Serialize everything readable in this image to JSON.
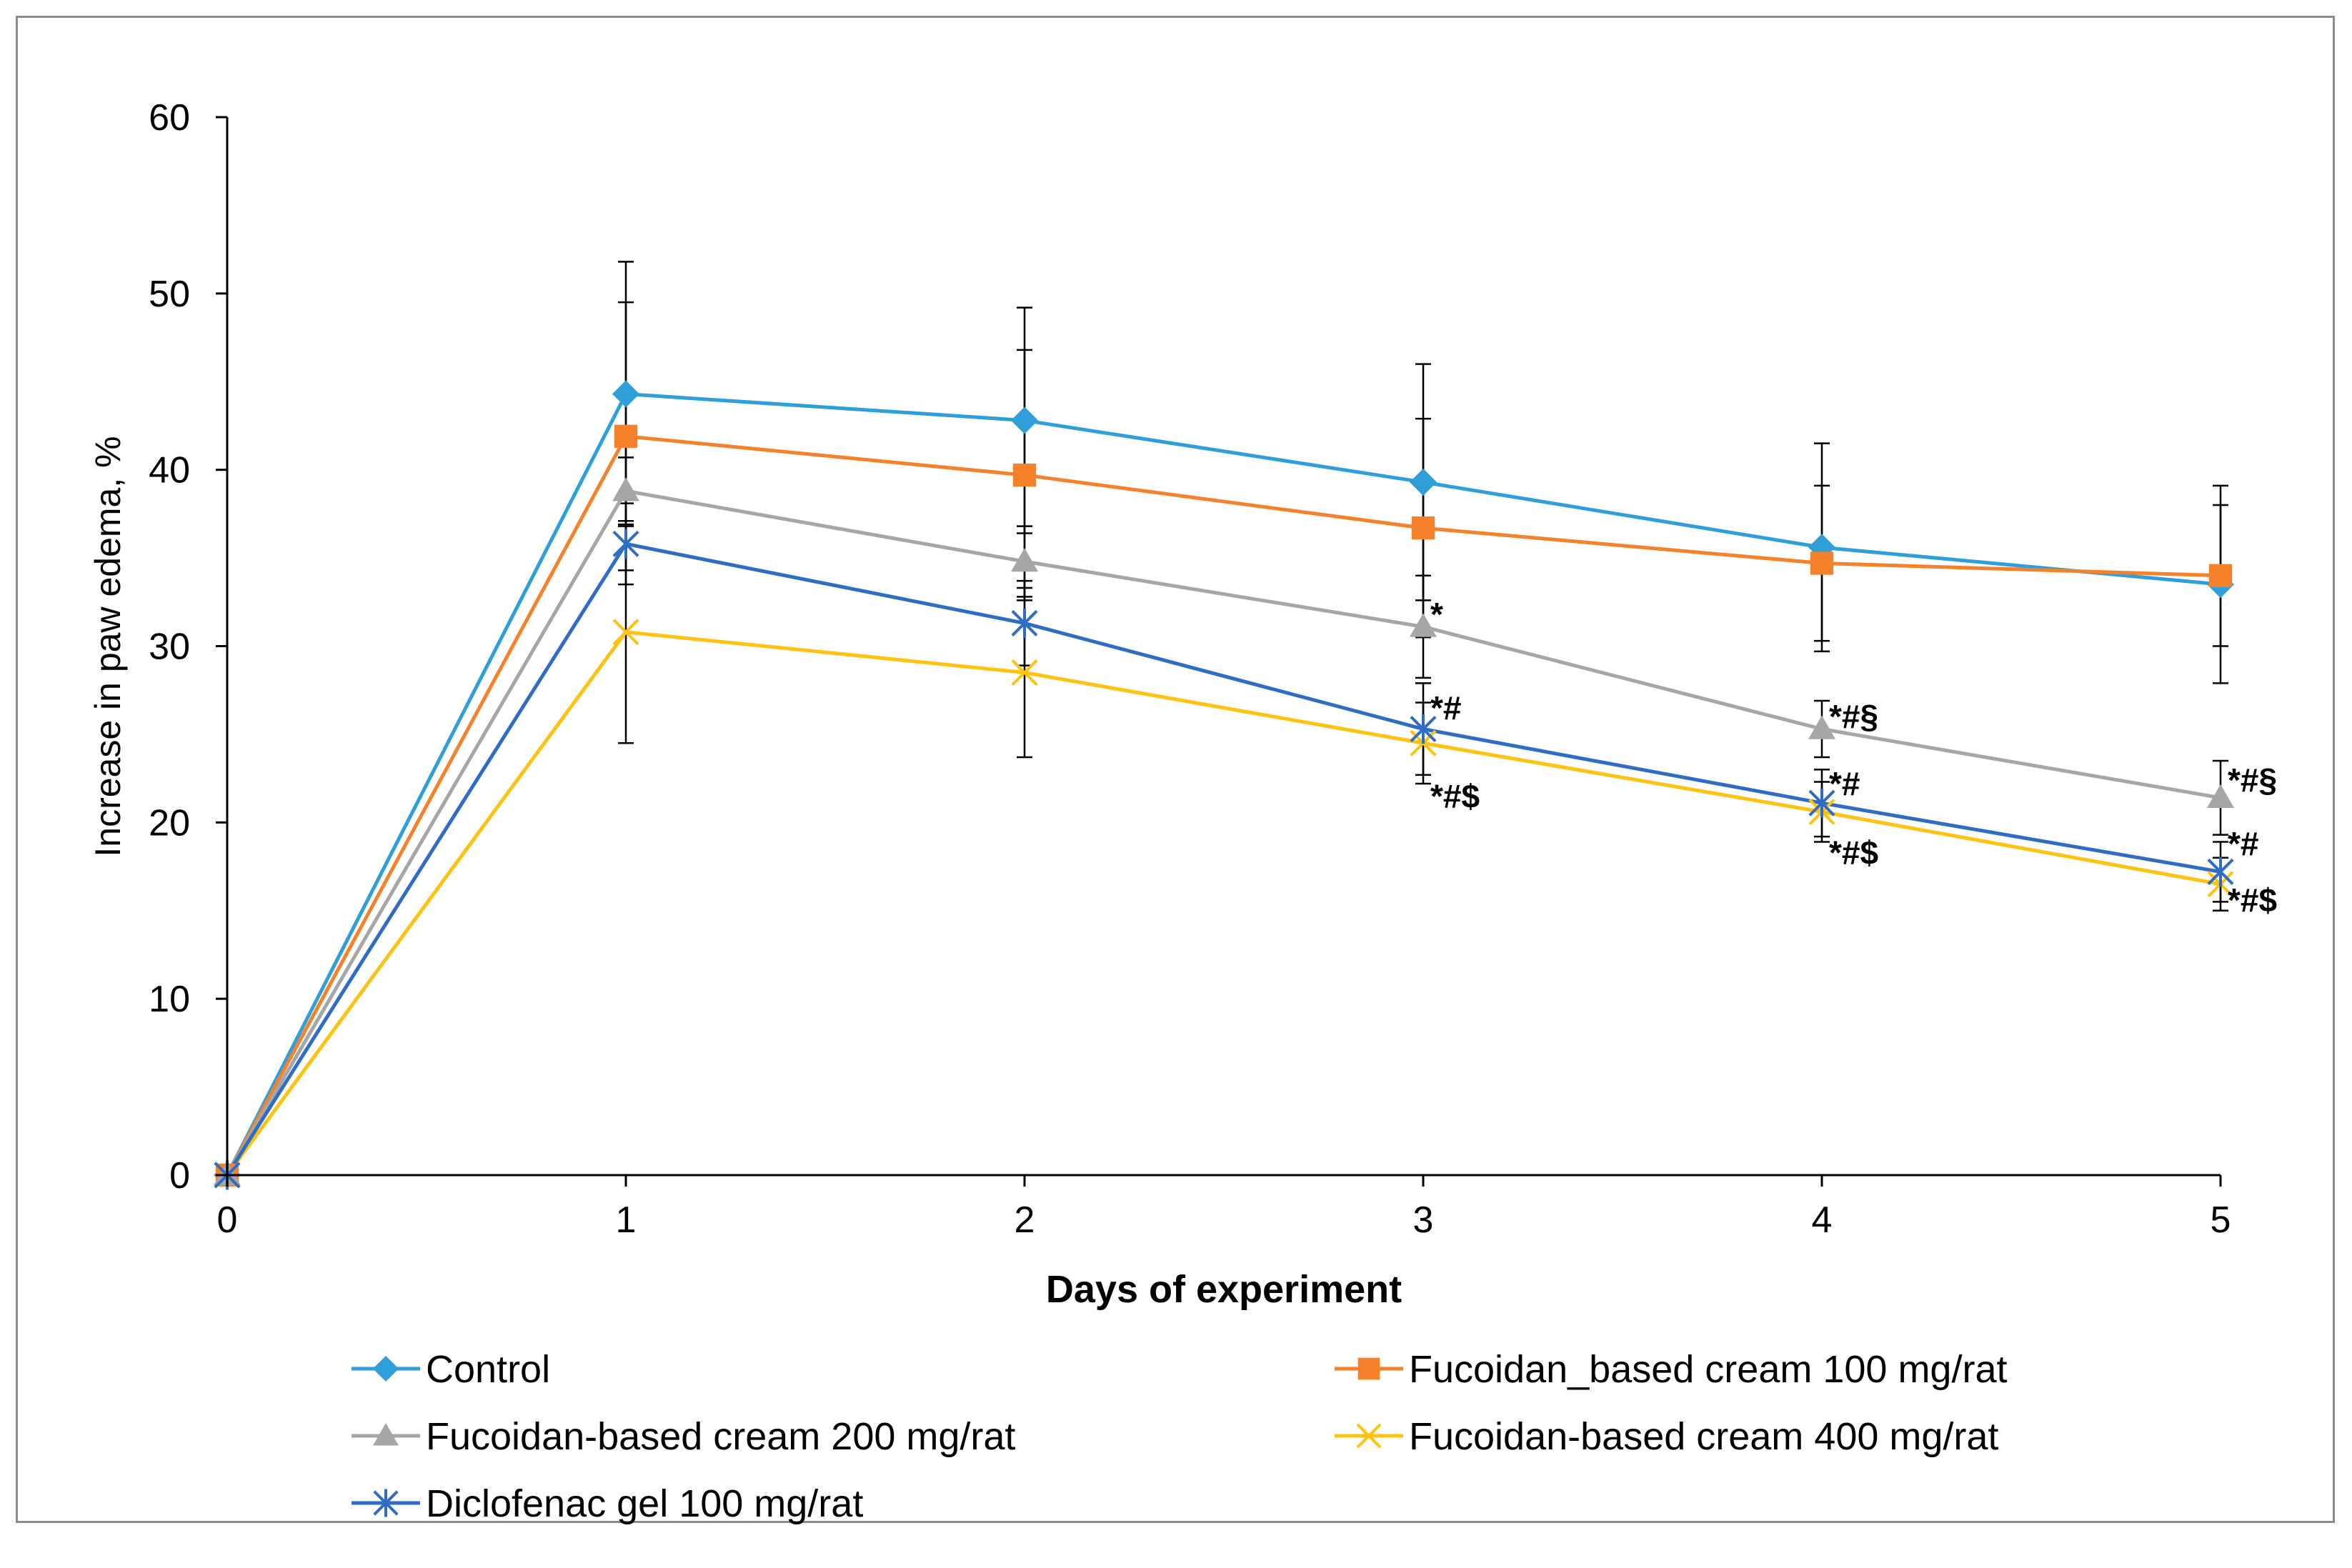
{
  "chart_data": {
    "type": "line",
    "xlabel": "Days  of experiment",
    "ylabel": "Increase in paw edema, %",
    "xlim": [
      0,
      5
    ],
    "ylim": [
      0,
      60
    ],
    "x_ticks": [
      "0",
      "1",
      "2",
      "3",
      "4",
      "5"
    ],
    "y_ticks": [
      "0",
      "10",
      "20",
      "30",
      "40",
      "50",
      "60"
    ],
    "x": [
      0,
      1,
      2,
      3,
      4,
      5
    ],
    "grid": false,
    "legend_position": "bottom",
    "series": [
      {
        "name": "Control",
        "color": "#2e9fd9",
        "marker": "diamond",
        "values": [
          0,
          44.3,
          42.8,
          39.3,
          35.6,
          33.5
        ],
        "errors": [
          0,
          7.5,
          6.4,
          6.7,
          5.9,
          5.6
        ]
      },
      {
        "name": "Fucoidan_based cream 100 mg/rat",
        "color": "#f5822a",
        "marker": "square",
        "values": [
          0,
          41.9,
          39.7,
          36.7,
          34.7,
          34.0
        ],
        "errors": [
          0,
          7.6,
          7.1,
          6.2,
          4.4,
          4.0
        ]
      },
      {
        "name": "Fucoidan-based cream 200 mg/rat",
        "color": "#a6a6a6",
        "marker": "triangle",
        "values": [
          0,
          38.8,
          34.8,
          31.1,
          25.3,
          21.4
        ],
        "errors": [
          0,
          1.9,
          2.0,
          2.9,
          1.6,
          2.1
        ]
      },
      {
        "name": "Fucoidan-based cream 400 mg/rat",
        "color": "#ffc20e",
        "marker": "x",
        "values": [
          0,
          30.8,
          28.5,
          24.5,
          20.6,
          16.5
        ],
        "errors": [
          0,
          6.3,
          4.8,
          2.3,
          1.7,
          1.5
        ]
      },
      {
        "name": "Diclofenac gel 100 mg/rat",
        "color": "#2f6cc4",
        "marker": "asterisk",
        "values": [
          0,
          35.8,
          31.3,
          25.3,
          21.1,
          17.2
        ],
        "errors": [
          0,
          2.3,
          2.4,
          2.6,
          1.9,
          1.7
        ]
      }
    ],
    "annotations": [
      {
        "text": "*",
        "x": 3,
        "y": 31.8
      },
      {
        "text": "*#",
        "x": 3,
        "y": 26.5
      },
      {
        "text": "*#$",
        "x": 3,
        "y": 21.5
      },
      {
        "text": "*#§",
        "x": 4,
        "y": 26.0
      },
      {
        "text": "*#",
        "x": 4,
        "y": 22.2
      },
      {
        "text": "*#$",
        "x": 4,
        "y": 18.3
      },
      {
        "text": "*#§",
        "x": 5,
        "y": 22.4
      },
      {
        "text": "*#",
        "x": 5,
        "y": 18.8
      },
      {
        "text": "*#$",
        "x": 5,
        "y": 15.6
      }
    ]
  }
}
